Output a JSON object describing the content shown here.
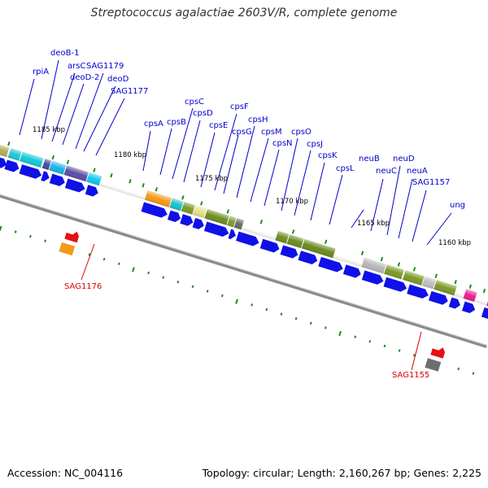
{
  "title": "Streptococcus agalactiae 2603V/R, complete genome",
  "footer": {
    "accession": "Accession: NC_004116",
    "summary": "Topology: circular; Length: 2,160,267 bp; Genes: 2,225"
  },
  "colors": {
    "gene_label": "#0000cc",
    "rna_label": "#dd0000",
    "forward_arrow": "#1010e8",
    "backbone": "#8a8a8a",
    "tick": "#1f8a1f"
  },
  "scale_labels": [
    "1185 kbp",
    "1180 kbp",
    "1175 kbp",
    "1170 kbp",
    "1165 kbp",
    "1160 kbp"
  ],
  "gene_labels": [
    "rpiA",
    "deoB-1",
    "arsC",
    "deoD-2",
    "SAG1179",
    "deoD",
    "SAG1177",
    "cpsA",
    "cpsB",
    "cpsC",
    "cpsD",
    "cpsE",
    "cpsF",
    "cpsG",
    "cpsH",
    "cpsM",
    "cpsN",
    "cpsO",
    "cpsJ",
    "cpsK",
    "cpsL",
    "neuB",
    "neuC",
    "neuD",
    "neuA",
    "SAG1157",
    "ung"
  ],
  "rna_labels": [
    "SAG1176",
    "SAG1155"
  ]
}
